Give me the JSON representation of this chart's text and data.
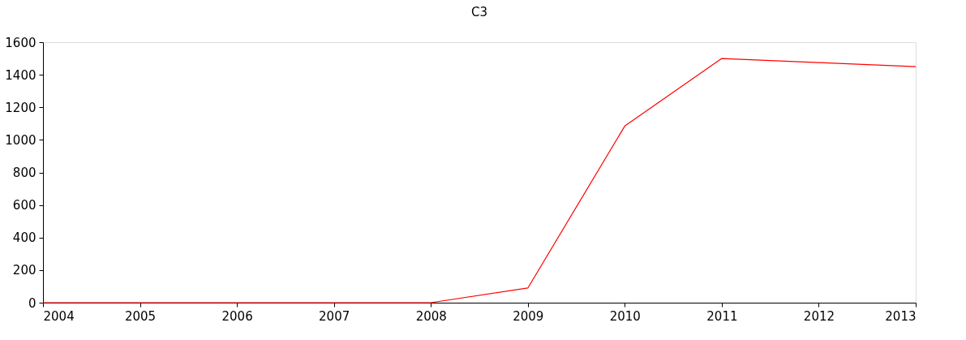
{
  "chart_data": {
    "type": "line",
    "title": "C3",
    "x": [
      2004,
      2005,
      2006,
      2007,
      2008,
      2009,
      2010,
      2011,
      2012,
      2013
    ],
    "series": [
      {
        "color": "#ff0000",
        "values": [
          0,
          0,
          0,
          0,
          0,
          90,
          1085,
          1500,
          1475,
          1450
        ]
      }
    ],
    "xlim": [
      2004,
      2013
    ],
    "xticks": [
      2004,
      2005,
      2006,
      2007,
      2008,
      2009,
      2010,
      2011,
      2012,
      2013
    ],
    "ylim": [
      0,
      1600
    ],
    "yticks": [
      0,
      200,
      400,
      600,
      800,
      1000,
      1200,
      1400,
      1600
    ],
    "grid": false,
    "legend": false,
    "marker": "none",
    "line_style": "solid"
  }
}
